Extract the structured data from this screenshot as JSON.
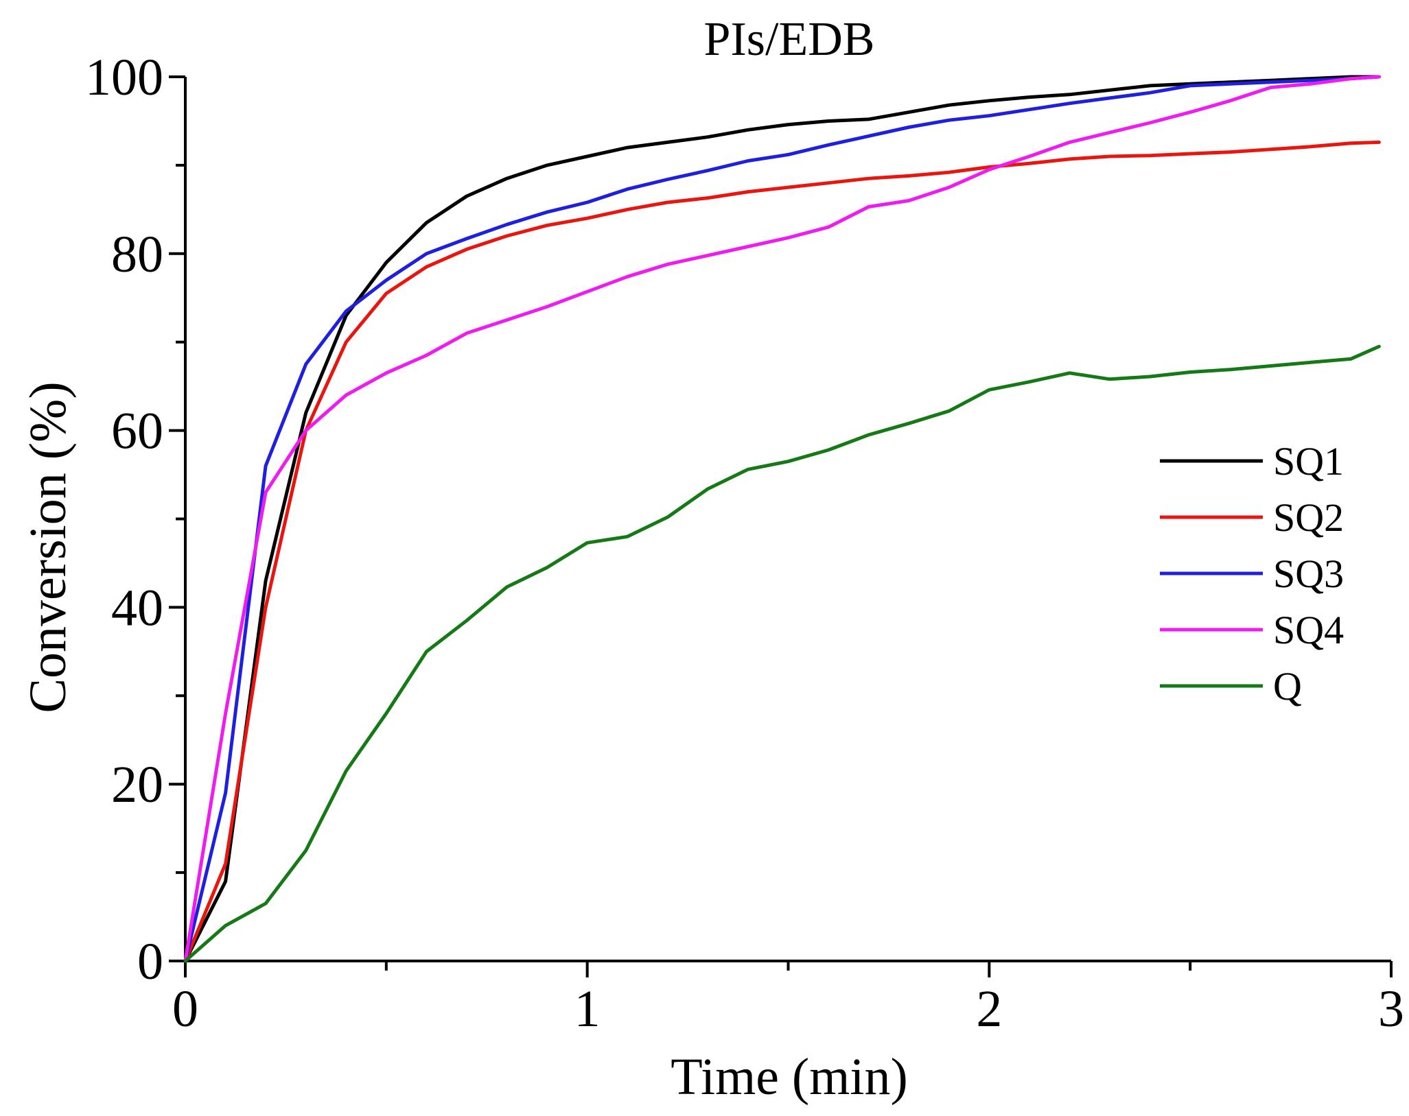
{
  "chart_data": {
    "type": "line",
    "title": "PIs/EDB",
    "xlabel": "Time (min)",
    "ylabel": "Conversion (%)",
    "xlim": [
      0,
      3
    ],
    "ylim": [
      0,
      100
    ],
    "xticks": [
      0,
      1,
      2,
      3
    ],
    "yticks": [
      0,
      20,
      40,
      60,
      80,
      100
    ],
    "xtick_labels": [
      "0",
      "1",
      "2",
      "3"
    ],
    "ytick_labels": [
      "0",
      "20",
      "40",
      "60",
      "80",
      "100"
    ],
    "grid": false,
    "legend_position": "right",
    "series": [
      {
        "name": "SQ1",
        "color": "#000000",
        "x": [
          0,
          0.1,
          0.2,
          0.3,
          0.4,
          0.5,
          0.6,
          0.7,
          0.8,
          0.9,
          1.0,
          1.1,
          1.2,
          1.3,
          1.4,
          1.5,
          1.6,
          1.7,
          1.8,
          1.9,
          2.0,
          2.1,
          2.2,
          2.3,
          2.4,
          2.5,
          2.6,
          2.7,
          2.8,
          2.9,
          2.97
        ],
        "values": [
          0,
          9,
          43,
          62,
          73,
          79,
          83.5,
          86.5,
          88.5,
          90,
          91,
          92,
          92.6,
          93.2,
          94,
          94.6,
          95,
          95.2,
          96,
          96.8,
          97.3,
          97.7,
          98,
          98.5,
          99,
          99.2,
          99.4,
          99.6,
          99.8,
          100,
          100
        ]
      },
      {
        "name": "SQ2",
        "color": "#e8160f",
        "x": [
          0,
          0.1,
          0.2,
          0.3,
          0.4,
          0.5,
          0.6,
          0.7,
          0.8,
          0.9,
          1.0,
          1.1,
          1.2,
          1.3,
          1.4,
          1.5,
          1.6,
          1.7,
          1.8,
          1.9,
          2.0,
          2.1,
          2.2,
          2.3,
          2.4,
          2.5,
          2.6,
          2.7,
          2.8,
          2.9,
          2.97
        ],
        "values": [
          0,
          11,
          40,
          60,
          70,
          75.5,
          78.5,
          80.5,
          82,
          83.2,
          84,
          85,
          85.8,
          86.3,
          87,
          87.5,
          88,
          88.5,
          88.8,
          89.2,
          89.8,
          90.2,
          90.7,
          91,
          91.1,
          91.3,
          91.5,
          91.8,
          92.1,
          92.5,
          92.6
        ]
      },
      {
        "name": "SQ3",
        "color": "#1f1fe0",
        "x": [
          0,
          0.1,
          0.2,
          0.3,
          0.4,
          0.5,
          0.6,
          0.7,
          0.8,
          0.9,
          1.0,
          1.1,
          1.2,
          1.3,
          1.4,
          1.5,
          1.6,
          1.7,
          1.8,
          1.9,
          2.0,
          2.1,
          2.2,
          2.3,
          2.4,
          2.5,
          2.6,
          2.7,
          2.8,
          2.9,
          2.97
        ],
        "values": [
          0,
          19,
          56,
          67.5,
          73.5,
          77,
          80,
          81.7,
          83.3,
          84.7,
          85.8,
          87.3,
          88.4,
          89.4,
          90.5,
          91.2,
          92.3,
          93.3,
          94.3,
          95.1,
          95.6,
          96.3,
          97,
          97.6,
          98.2,
          99,
          99.2,
          99.4,
          99.6,
          99.8,
          100
        ]
      },
      {
        "name": "SQ4",
        "color": "#ee1cee",
        "x": [
          0,
          0.1,
          0.2,
          0.3,
          0.4,
          0.5,
          0.6,
          0.7,
          0.8,
          0.9,
          1.0,
          1.1,
          1.2,
          1.3,
          1.4,
          1.5,
          1.6,
          1.7,
          1.8,
          1.9,
          2.0,
          2.1,
          2.2,
          2.3,
          2.4,
          2.5,
          2.6,
          2.7,
          2.8,
          2.9,
          2.97
        ],
        "values": [
          0,
          28,
          53,
          60,
          64,
          66.5,
          68.5,
          71,
          72.5,
          74,
          75.7,
          77.4,
          78.8,
          79.8,
          80.8,
          81.8,
          83,
          85.3,
          86,
          87.5,
          89.5,
          91,
          92.6,
          93.7,
          94.8,
          96,
          97.3,
          98.8,
          99.2,
          99.8,
          100
        ]
      },
      {
        "name": "Q",
        "color": "#157a15",
        "x": [
          0,
          0.1,
          0.2,
          0.3,
          0.4,
          0.5,
          0.6,
          0.7,
          0.8,
          0.9,
          1.0,
          1.1,
          1.2,
          1.3,
          1.4,
          1.5,
          1.6,
          1.7,
          1.8,
          1.9,
          2.0,
          2.1,
          2.2,
          2.3,
          2.4,
          2.5,
          2.6,
          2.7,
          2.8,
          2.9,
          2.97
        ],
        "values": [
          0,
          4,
          6.5,
          12.5,
          21.5,
          28,
          35,
          38.5,
          42.3,
          44.5,
          47.3,
          48,
          50.2,
          53.4,
          55.6,
          56.5,
          57.8,
          59.5,
          60.8,
          62.2,
          64.6,
          65.5,
          66.5,
          65.8,
          66.1,
          66.6,
          66.9,
          67.3,
          67.7,
          68.1,
          69.5
        ]
      }
    ]
  }
}
